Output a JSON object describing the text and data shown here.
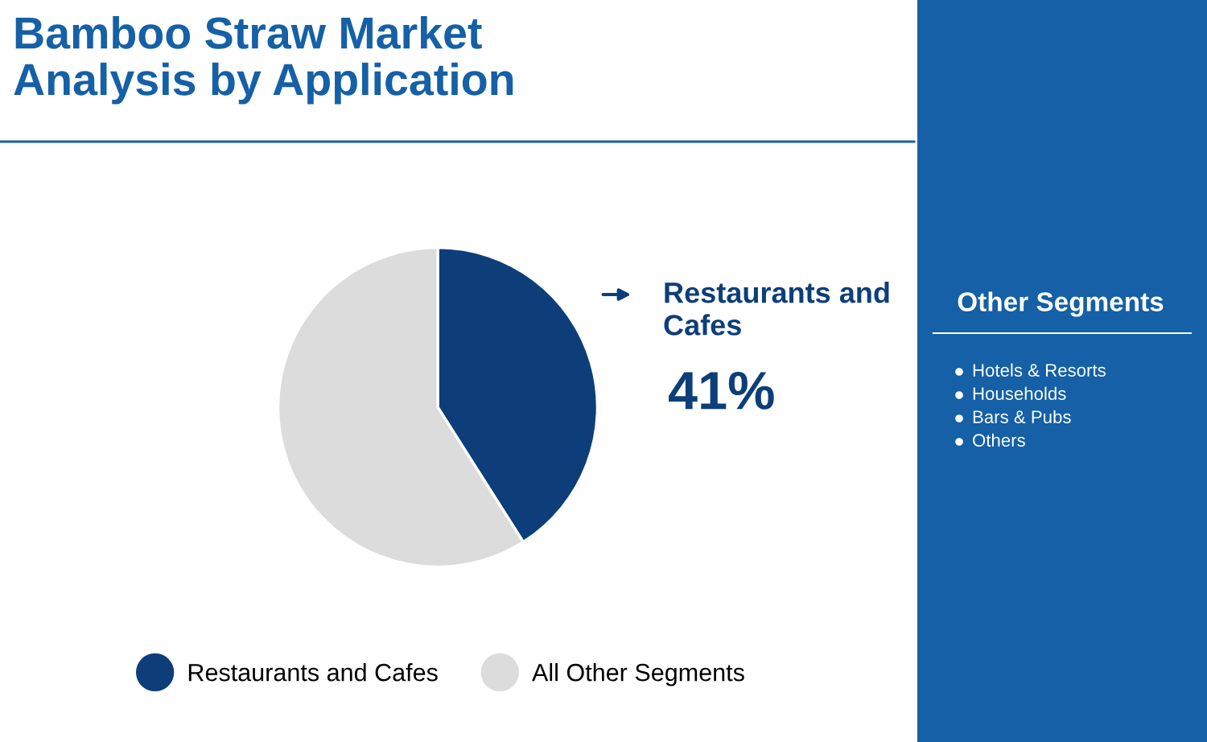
{
  "chart_data": {
    "type": "pie",
    "title": "Bamboo Straw Market Analysis by Application",
    "categories": [
      "Restaurants and Cafes",
      "All Other Segments"
    ],
    "values": [
      41,
      59
    ],
    "colors": [
      "#0d3e7a",
      "#dcdcdc"
    ],
    "value_labels": [
      "41%",
      null
    ],
    "legend": "bottom",
    "annotations": [
      "Other Segments",
      "Hotels & Resorts",
      "Households",
      "Bars & Pubs",
      "Others"
    ]
  }
}
